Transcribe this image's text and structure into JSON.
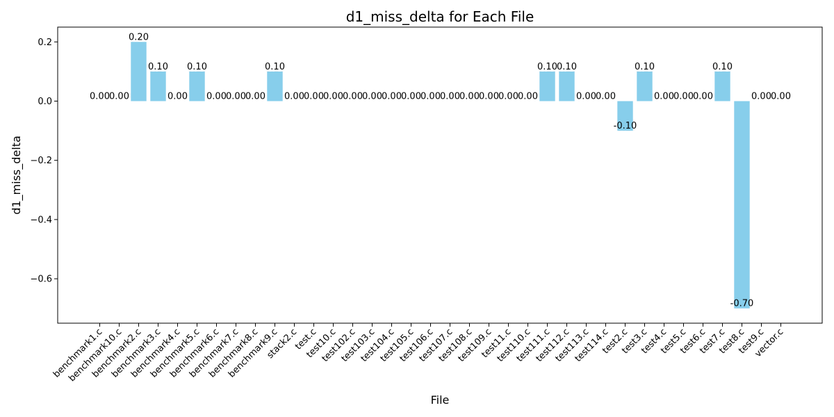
{
  "chart_data": {
    "type": "bar",
    "title": "d1_miss_delta for Each File",
    "xlabel": "File",
    "ylabel": "d1_miss_delta",
    "categories": [
      "benchmark1.c",
      "benchmark10.c",
      "benchmark2.c",
      "benchmark3.c",
      "benchmark4.c",
      "benchmark5.c",
      "benchmark6.c",
      "benchmark7.c",
      "benchmark8.c",
      "benchmark9.c",
      "stack2.c",
      "test.c",
      "test10.c",
      "test102.c",
      "test103.c",
      "test104.c",
      "test105.c",
      "test106.c",
      "test107.c",
      "test108.c",
      "test109.c",
      "test11.c",
      "test110.c",
      "test111.c",
      "test112.c",
      "test113.c",
      "test114.c",
      "test2.c",
      "test3.c",
      "test4.c",
      "test5.c",
      "test6.c",
      "test7.c",
      "test8.c",
      "test9.c",
      "vector.c"
    ],
    "values": [
      0,
      0,
      0.2,
      0.1,
      0,
      0.1,
      0,
      0,
      0,
      0.1,
      0,
      0,
      0,
      0,
      0,
      0,
      0,
      0,
      0,
      0,
      0,
      0,
      0,
      0.1,
      0.1,
      0,
      0,
      -0.1,
      0.1,
      0,
      0,
      0,
      0.1,
      -0.7,
      0,
      0
    ],
    "data_labels": [
      "0.00",
      "0.00",
      "0.20",
      "0.10",
      "0.00",
      "0.10",
      "0.00",
      "0.00",
      "0.00",
      "0.10",
      "0.00",
      "0.00",
      "0.00",
      "0.00",
      "0.00",
      "0.00",
      "0.00",
      "0.00",
      "0.00",
      "0.00",
      "0.00",
      "0.00",
      "0.00",
      "0.10",
      "0.10",
      "0.00",
      "0.00",
      "-0.10",
      "0.10",
      "0.00",
      "0.00",
      "0.00",
      "0.10",
      "-0.70",
      "0.00",
      "0.00"
    ],
    "ylim": [
      -0.75,
      0.25
    ],
    "yticks": [
      -0.6,
      -0.4,
      -0.2,
      0.0,
      0.2
    ],
    "ytick_labels": [
      "−0.6",
      "−0.4",
      "−0.2",
      "0.0",
      "0.2"
    ],
    "bar_color": "#87ceeb",
    "grid": false,
    "legend": false
  }
}
